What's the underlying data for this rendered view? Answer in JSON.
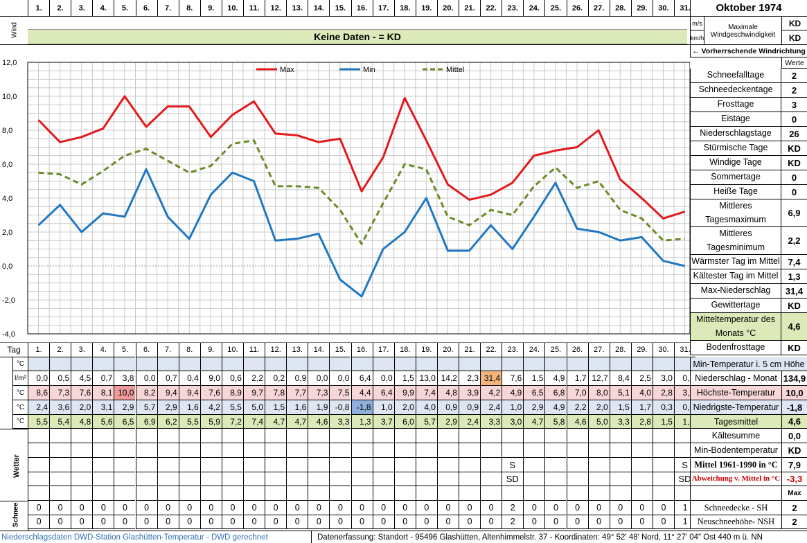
{
  "header": {
    "title": "Oktober 1974",
    "days": [
      "1.",
      "2.",
      "3.",
      "4.",
      "5.",
      "6.",
      "7.",
      "8.",
      "9.",
      "10.",
      "11.",
      "12.",
      "13.",
      "14.",
      "15.",
      "16.",
      "17.",
      "18.",
      "19.",
      "20.",
      "21.",
      "22.",
      "23.",
      "24.",
      "25.",
      "26.",
      "27.",
      "28.",
      "29.",
      "30.",
      "31."
    ]
  },
  "wind": {
    "label": "Wind",
    "banner": "Keine Daten -  = KD",
    "unit_ms": "m/s",
    "unit_kmh": "km/h",
    "max_label": "Maximale Windgeschwindigkeit",
    "max_ms": "KD",
    "max_kmh": "KD",
    "prevailing_label": "← Vorherrschende Windrichtung"
  },
  "chart_data": {
    "type": "line",
    "x": [
      1,
      2,
      3,
      4,
      5,
      6,
      7,
      8,
      9,
      10,
      11,
      12,
      13,
      14,
      15,
      16,
      17,
      18,
      19,
      20,
      21,
      22,
      23,
      24,
      25,
      26,
      27,
      28,
      29,
      30,
      31
    ],
    "ylim": [
      -4,
      12
    ],
    "yticks": [
      "12,0",
      "10,0",
      "8,0",
      "6,0",
      "4,0",
      "2,0",
      "0,0",
      "-2,0",
      "-4,0"
    ],
    "grid": true,
    "legend_position": "top",
    "series": [
      {
        "name": "Max",
        "color": "#e31a1c",
        "values": [
          8.6,
          7.3,
          7.6,
          8.1,
          10.0,
          8.2,
          9.4,
          9.4,
          7.6,
          8.9,
          9.7,
          7.8,
          7.7,
          7.3,
          7.5,
          4.4,
          6.4,
          9.9,
          7.4,
          4.8,
          3.9,
          4.2,
          4.9,
          6.5,
          6.8,
          7.0,
          8.0,
          5.1,
          4.0,
          2.8,
          3.2
        ]
      },
      {
        "name": "Min",
        "color": "#1f77c4",
        "values": [
          2.4,
          3.6,
          2.0,
          3.1,
          2.9,
          5.7,
          2.9,
          1.6,
          4.2,
          5.5,
          5.0,
          1.5,
          1.6,
          1.9,
          -0.8,
          -1.8,
          1.0,
          2.0,
          4.0,
          0.9,
          0.9,
          2.4,
          1.0,
          2.9,
          4.9,
          2.2,
          2.0,
          1.5,
          1.7,
          0.3,
          0.0
        ]
      },
      {
        "name": "Mittel",
        "color": "#6b8a2a",
        "values": [
          5.5,
          5.4,
          4.8,
          5.6,
          6.5,
          6.9,
          6.2,
          5.5,
          5.9,
          7.2,
          7.4,
          4.7,
          4.7,
          4.6,
          3.3,
          1.3,
          3.7,
          6.0,
          5.7,
          2.9,
          2.4,
          3.3,
          3.0,
          4.7,
          5.8,
          4.6,
          5.0,
          3.3,
          2.8,
          1.5,
          1.6
        ]
      }
    ]
  },
  "summary": {
    "werte_header": "Werte",
    "rows": [
      {
        "label": "Schneefalltage",
        "value": "2"
      },
      {
        "label": "Schneedeckentage",
        "value": "2"
      },
      {
        "label": "Frosttage",
        "value": "3"
      },
      {
        "label": "Eistage",
        "value": "0"
      },
      {
        "label": "Niederschlagstage",
        "value": "26"
      },
      {
        "label": "Stürmische Tage",
        "value": "KD"
      },
      {
        "label": "Windige Tage",
        "value": "KD"
      },
      {
        "label": "Sommertage",
        "value": "0"
      },
      {
        "label": "Heiße Tage",
        "value": "0"
      },
      {
        "label": "Mittleres Tagesmaximum",
        "value": "6,9"
      },
      {
        "label": "Mittleres Tagesminimum",
        "value": "2,2"
      },
      {
        "label": "Wärmster Tag im Mittel",
        "value": "7,4"
      },
      {
        "label": "Kältester Tag im Mittel",
        "value": "1,3"
      },
      {
        "label": "Max-Niederschlag",
        "value": "31,4"
      },
      {
        "label": "Gewittertage",
        "value": "KD"
      },
      {
        "label": "Mitteltemperatur des Monats °C",
        "value": "4,6"
      },
      {
        "label": "Bodenfrosttage",
        "value": "KD"
      }
    ]
  },
  "table": {
    "tag_label": "Tag",
    "units": [
      "°C",
      "l/m²",
      "°C",
      "°C",
      "°C"
    ],
    "min5_label": "Min-Temperatur i. 5 cm Höhe",
    "precip": {
      "label": "Niederschlag - Monat",
      "total": "134,9",
      "values": [
        "0,0",
        "0,5",
        "4,5",
        "0,7",
        "3,8",
        "0,0",
        "0,7",
        "0,4",
        "9,0",
        "0,6",
        "2,2",
        "0,2",
        "0,9",
        "0,0",
        "0,0",
        "6,4",
        "0,0",
        "1,5",
        "13,0",
        "14,2",
        "2,3",
        "31,4",
        "7,6",
        "1,5",
        "4,9",
        "1,7",
        "12,7",
        "8,4",
        "2,5",
        "3,0",
        "0,3"
      ]
    },
    "tmax": {
      "label": "Höchste-Temperatur",
      "total": "10,0",
      "values": [
        "8,6",
        "7,3",
        "7,6",
        "8,1",
        "10,0",
        "8,2",
        "9,4",
        "9,4",
        "7,6",
        "8,9",
        "9,7",
        "7,8",
        "7,7",
        "7,3",
        "7,5",
        "4,4",
        "6,4",
        "9,9",
        "7,4",
        "4,8",
        "3,9",
        "4,2",
        "4,9",
        "6,5",
        "6,8",
        "7,0",
        "8,0",
        "5,1",
        "4,0",
        "2,8",
        "3,2"
      ]
    },
    "tmin": {
      "label": "Niedrigste-Temperatur",
      "total": "-1,8",
      "values": [
        "2,4",
        "3,6",
        "2,0",
        "3,1",
        "2,9",
        "5,7",
        "2,9",
        "1,6",
        "4,2",
        "5,5",
        "5,0",
        "1,5",
        "1,6",
        "1,9",
        "-0,8",
        "-1,8",
        "1,0",
        "2,0",
        "4,0",
        "0,9",
        "0,9",
        "2,4",
        "1,0",
        "2,9",
        "4,9",
        "2,2",
        "2,0",
        "1,5",
        "1,7",
        "0,3",
        "0,0"
      ]
    },
    "tmean": {
      "label": "Tagesmittel",
      "total": "4,6",
      "values": [
        "5,5",
        "5,4",
        "4,8",
        "5,6",
        "6,5",
        "6,9",
        "6,2",
        "5,5",
        "5,9",
        "7,2",
        "7,4",
        "4,7",
        "4,7",
        "4,6",
        "3,3",
        "1,3",
        "3,7",
        "6,0",
        "5,7",
        "2,9",
        "2,4",
        "3,3",
        "3,0",
        "4,7",
        "5,8",
        "4,6",
        "5,0",
        "3,3",
        "2,8",
        "1,5",
        "1,6"
      ]
    },
    "kaeltesumme": {
      "label": "Kältesumme",
      "value": "0,0"
    },
    "minboden": {
      "label": "Min-Bodentemperatur",
      "value": "KD"
    },
    "mittel6190": {
      "label": "Mittel 1961-1990 in °C",
      "value": "7,9",
      "marker": "S"
    },
    "abweichung": {
      "label": "Abweichung v. Mittel in °C",
      "value": "-3,3",
      "marker": "SD"
    },
    "max_label": "Max",
    "wetter_label": "Wetter",
    "schnee_label": "Schnee",
    "snow_depth": {
      "label": "Schneedecke -  SH",
      "total": "2",
      "values": [
        "0",
        "0",
        "0",
        "0",
        "0",
        "0",
        "0",
        "0",
        "0",
        "0",
        "0",
        "0",
        "0",
        "0",
        "0",
        "0",
        "0",
        "0",
        "0",
        "0",
        "0",
        "0",
        "2",
        "0",
        "0",
        "0",
        "0",
        "0",
        "0",
        "0",
        "1"
      ]
    },
    "new_snow": {
      "label": "Neuschneehöhe- NSH",
      "total": "2",
      "values": [
        "0",
        "0",
        "0",
        "0",
        "0",
        "0",
        "0",
        "0",
        "0",
        "0",
        "0",
        "0",
        "0",
        "0",
        "0",
        "0",
        "0",
        "0",
        "0",
        "0",
        "0",
        "0",
        "2",
        "0",
        "0",
        "0",
        "0",
        "0",
        "0",
        "0",
        "1"
      ]
    }
  },
  "footer": {
    "left": "Niederschlagsdaten DWD-Station Glashütten-Temperatur -  DWD gerechnet",
    "right": "Datenerfassung: Standort -  95496  Glashütten, Altenhimmelstr. 37 - Koordinaten:  49° 52' 48' Nord,   11° 27' 04\" Ost   440 m ü. NN"
  }
}
